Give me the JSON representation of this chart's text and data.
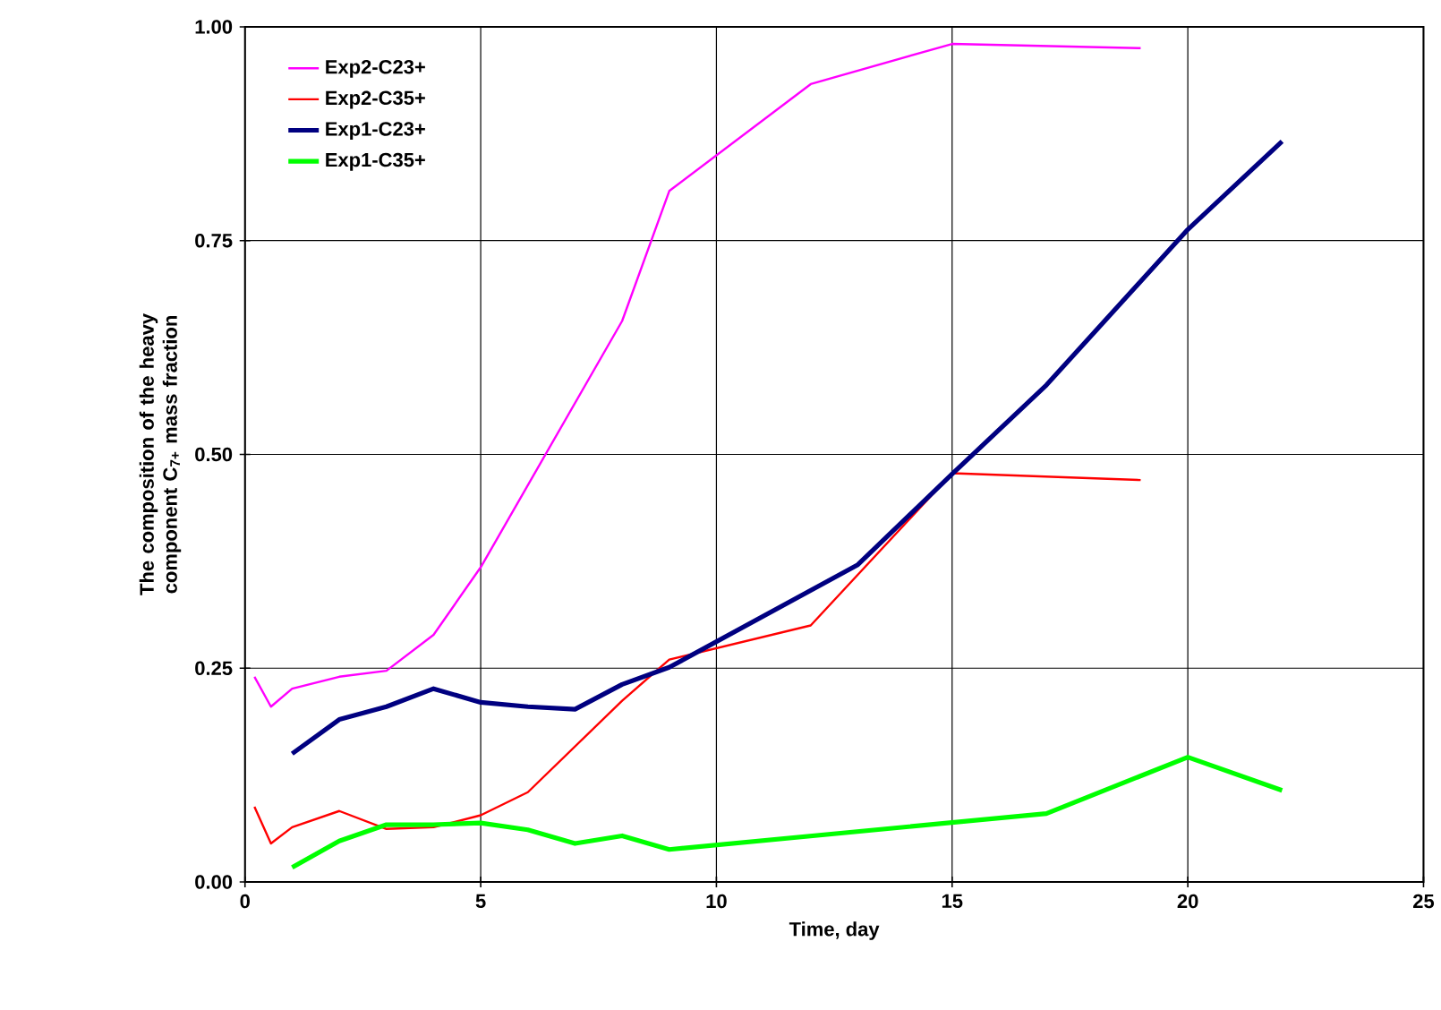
{
  "chart_data": {
    "type": "line",
    "xlabel": "Time, day",
    "ylabel": "The composition of the heavy component C$_{7+}$ mass fraction",
    "xlim": [
      0,
      25
    ],
    "xticks": [
      0,
      5,
      10,
      15,
      20,
      25
    ],
    "ylim": [
      0,
      1
    ],
    "yticks": [
      {
        "value": 0,
        "label": "0.00"
      },
      {
        "value": 0.25,
        "label": "0.25"
      },
      {
        "value": 0.5,
        "label": "0.50"
      },
      {
        "value": 0.75,
        "label": "0.75"
      },
      {
        "value": 1,
        "label": "1.00"
      }
    ],
    "grid": true,
    "legend": "top left",
    "marker": "none",
    "line_style": "solid",
    "series": [
      {
        "name": "Exp2-C23+",
        "color": "#ff00ff",
        "x": [
          0.2,
          0.55,
          1,
          2,
          3,
          4,
          5,
          8,
          9,
          12,
          15,
          19
        ],
        "values": [
          0.24,
          0.205,
          0.226,
          0.24,
          0.247,
          0.289,
          0.368,
          0.656,
          0.808,
          0.933,
          0.98,
          0.975
        ]
      },
      {
        "name": "Exp2-C35+",
        "color": "#ff0000",
        "x": [
          0.2,
          0.55,
          1,
          2,
          3,
          4,
          5,
          6,
          8,
          9,
          12,
          15,
          19
        ],
        "values": [
          0.088,
          0.045,
          0.064,
          0.083,
          0.062,
          0.064,
          0.078,
          0.105,
          0.212,
          0.26,
          0.3,
          0.478,
          0.47
        ]
      },
      {
        "name": "Exp1-C23+",
        "color": "#000080",
        "x": [
          1,
          2,
          3,
          4,
          5,
          6,
          7,
          8,
          9,
          13,
          15,
          17,
          20,
          22
        ],
        "values": [
          0.15,
          0.19,
          0.205,
          0.226,
          0.21,
          0.205,
          0.202,
          0.231,
          0.251,
          0.371,
          0.477,
          0.581,
          0.763,
          0.866
        ]
      },
      {
        "name": "Exp1-C35+",
        "color": "#00ff00",
        "x": [
          1,
          2,
          3,
          4,
          5,
          6,
          7,
          8,
          9,
          17,
          20,
          22
        ],
        "values": [
          0.017,
          0.048,
          0.067,
          0.067,
          0.069,
          0.061,
          0.045,
          0.054,
          0.038,
          0.08,
          0.146,
          0.107
        ]
      }
    ]
  }
}
